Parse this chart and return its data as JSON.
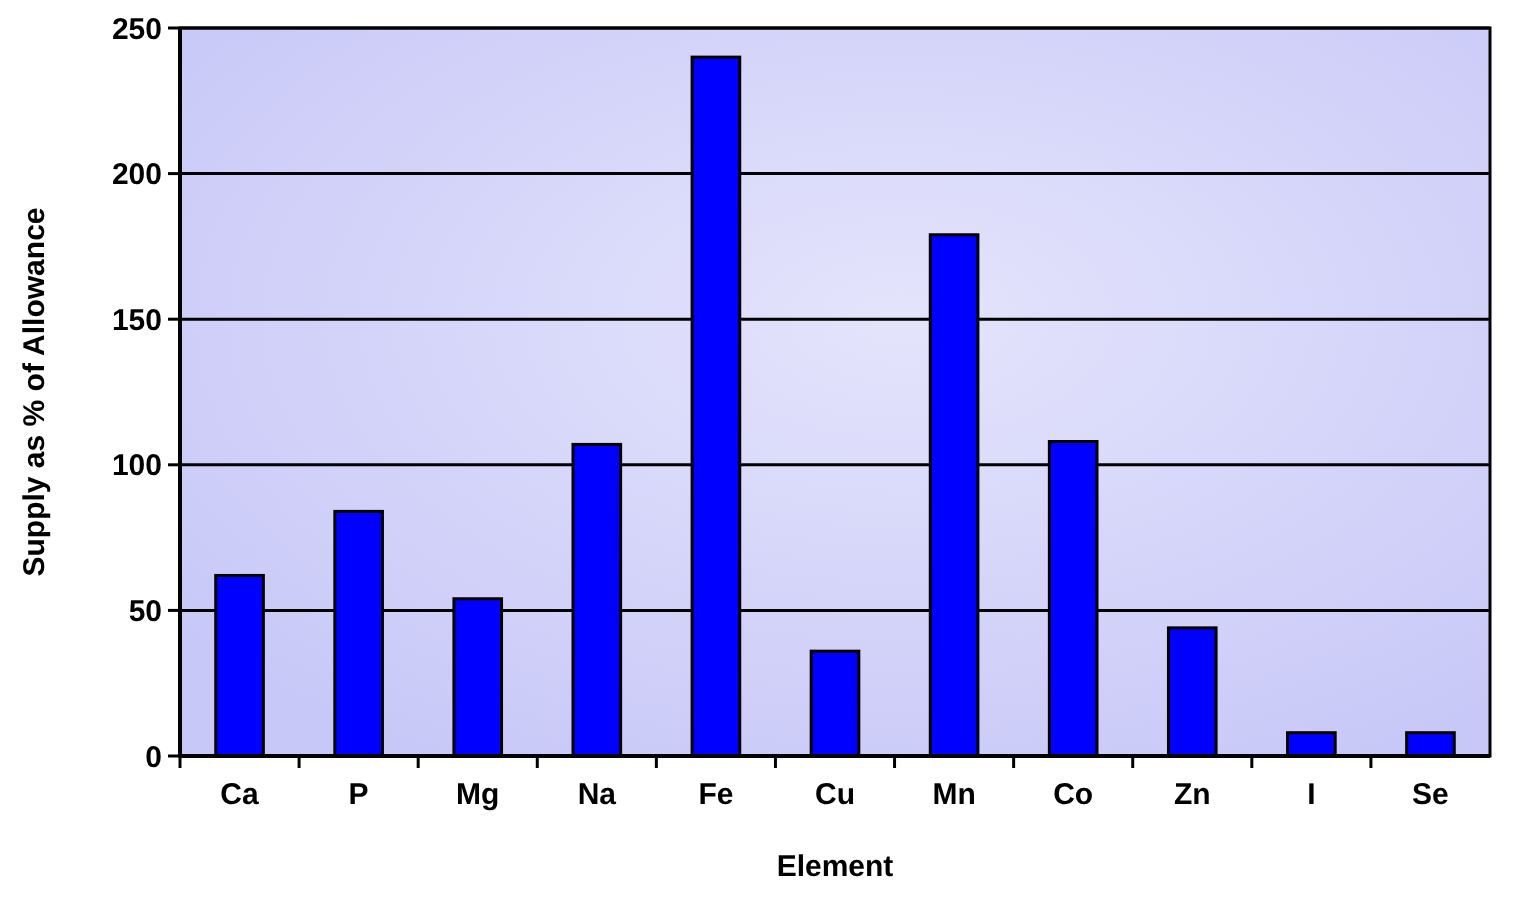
{
  "chart_data": {
    "type": "bar",
    "xlabel": "Element",
    "ylabel": "Supply as % of Allowance",
    "categories": [
      "Ca",
      "P",
      "Mg",
      "Na",
      "Fe",
      "Cu",
      "Mn",
      "Co",
      "Zn",
      "I",
      "Se"
    ],
    "values": [
      62,
      84,
      54,
      107,
      240,
      36,
      179,
      108,
      44,
      8,
      8
    ],
    "color": "#0000ff",
    "ylim": [
      0,
      250
    ],
    "yticks": [
      0,
      50,
      100,
      150,
      200,
      250
    ],
    "grid": "y"
  }
}
